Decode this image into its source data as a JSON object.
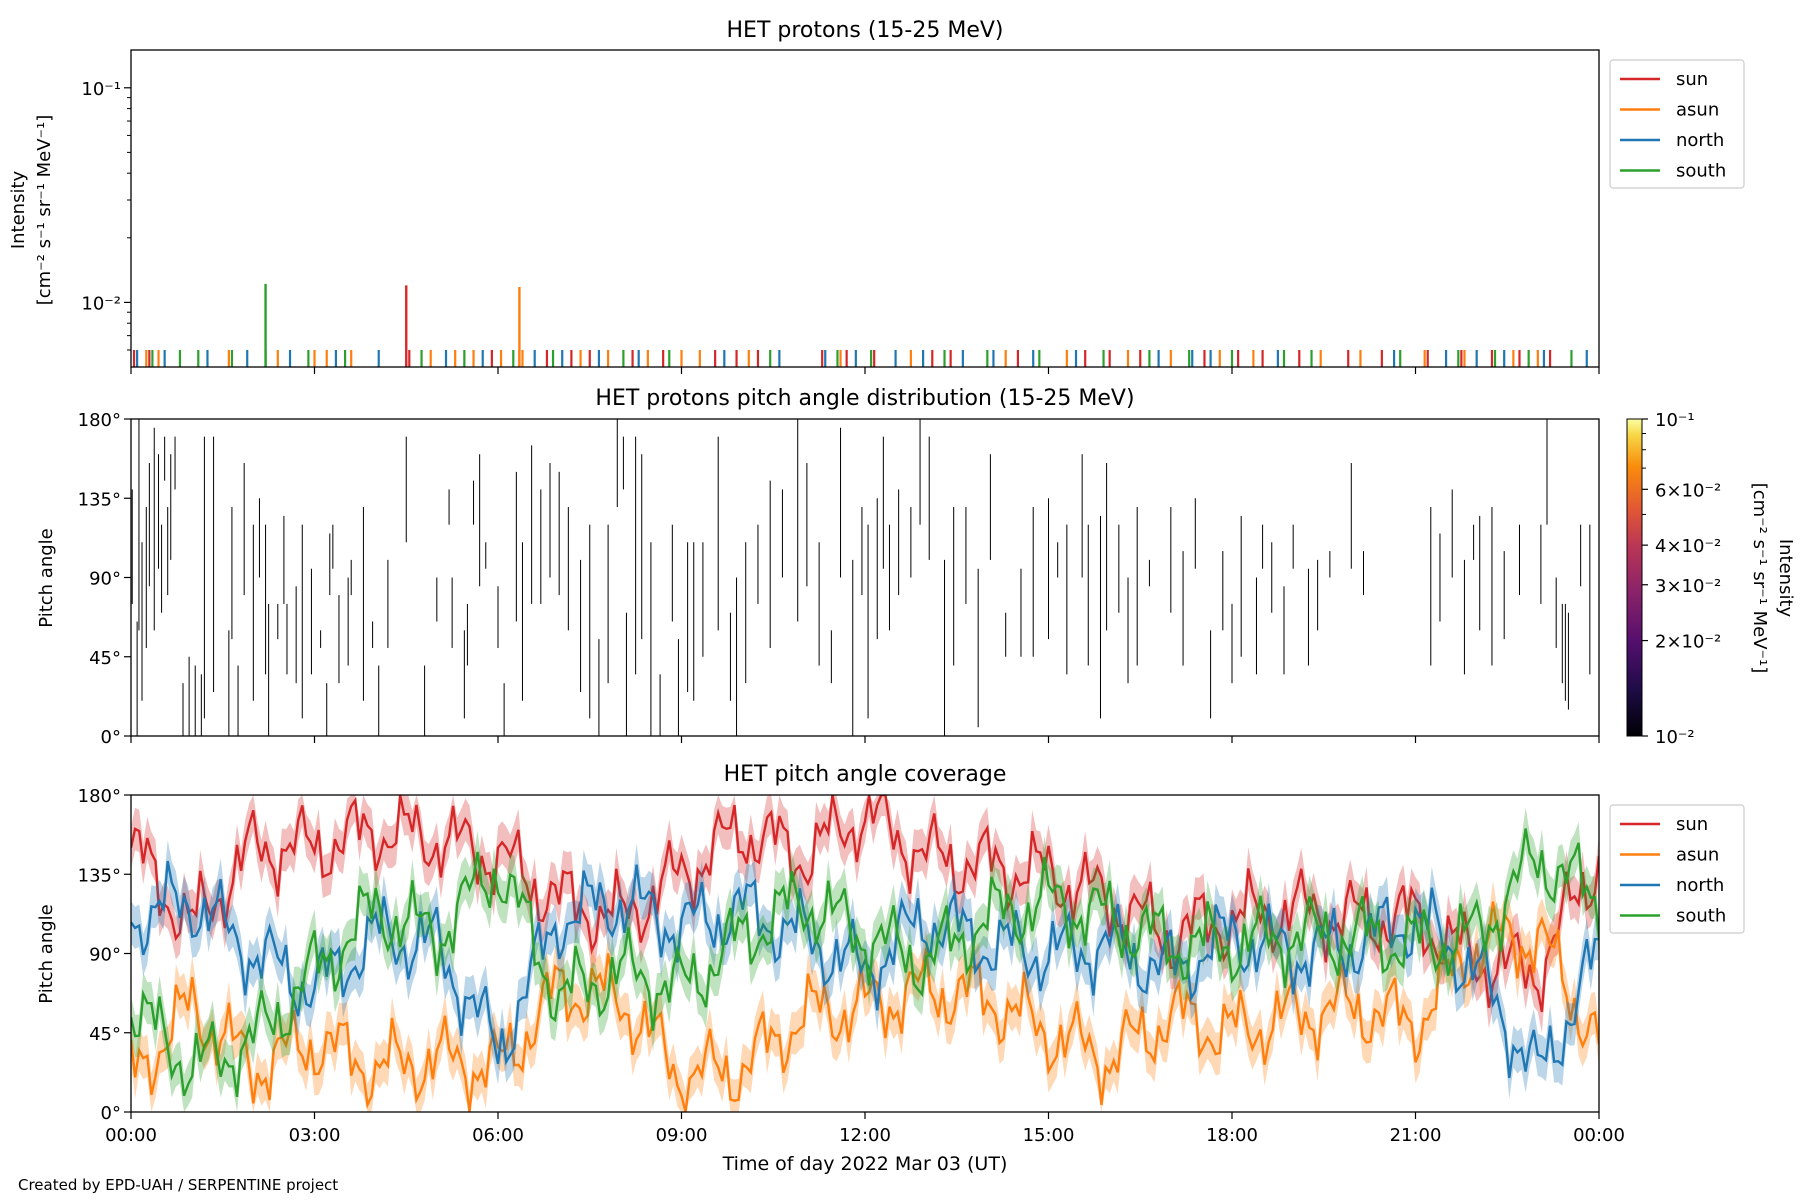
{
  "footer": "Created by EPD-UAH / SERPENTINE project",
  "colors": {
    "sun": "#d62728",
    "asun": "#ff7f0e",
    "north": "#1f77b4",
    "south": "#2ca02c"
  },
  "chart_data": [
    {
      "id": "intensity",
      "type": "line",
      "title": "HET protons (15-25 MeV)",
      "ylabel_lines": [
        "Intensity",
        "[cm⁻² s⁻¹ sr⁻¹ MeV⁻¹]"
      ],
      "yscale": "log",
      "ylim": [
        0.005,
        0.15
      ],
      "yticks": [
        {
          "value": 0.1,
          "label": "10⁻¹"
        },
        {
          "value": 0.01,
          "label": "10⁻²"
        }
      ],
      "xlim": [
        "00:00",
        "24:00"
      ],
      "legend": {
        "position": "upper right outside",
        "entries": [
          "sun",
          "asun",
          "north",
          "south"
        ]
      },
      "baseline": 0.006,
      "series": [
        {
          "name": "sun",
          "color": "#d62728",
          "spikes": [
            {
              "x": 4.5,
              "y": 0.012
            }
          ],
          "baseline_hours": [
            0.05,
            0.3,
            4.55,
            5.9,
            6.35,
            6.8,
            7.2,
            7.5,
            8.2,
            8.7,
            9.55,
            9.9,
            10.25,
            11.3,
            11.7,
            12.15,
            13.1,
            13.4,
            14.5,
            15.6,
            16.0,
            16.5,
            17.55,
            18.1,
            18.5,
            19.1,
            19.9,
            20.45,
            21.2,
            21.75,
            22.25,
            22.7,
            23.2
          ]
        },
        {
          "name": "asun",
          "color": "#ff7f0e",
          "spikes": [
            {
              "x": 6.35,
              "y": 0.0118
            }
          ],
          "baseline_hours": [
            0.25,
            0.45,
            1.6,
            2.4,
            3.0,
            3.2,
            3.6,
            4.9,
            5.3,
            5.6,
            6.05,
            6.4,
            7.35,
            7.8,
            8.45,
            9.0,
            9.3,
            10.1,
            11.6,
            12.75,
            14.3,
            15.3,
            16.3,
            17.0,
            17.8,
            18.35,
            19.45,
            20.1,
            21.15,
            21.8,
            22.6,
            23.0
          ]
        },
        {
          "name": "north",
          "color": "#1f77b4",
          "spikes": [],
          "baseline_hours": [
            0.1,
            0.55,
            1.25,
            1.9,
            2.6,
            3.35,
            4.05,
            5.15,
            5.75,
            6.6,
            7.05,
            7.65,
            8.3,
            9.7,
            10.6,
            11.35,
            11.85,
            12.5,
            12.95,
            13.6,
            14.1,
            14.75,
            15.45,
            16.8,
            17.35,
            17.65,
            18.75,
            20.65,
            21.5,
            22.0,
            22.45,
            23.1,
            23.8
          ]
        },
        {
          "name": "south",
          "color": "#2ca02c",
          "spikes": [
            {
              "x": 2.2,
              "y": 0.0122
            }
          ],
          "baseline_hours": [
            0.35,
            0.8,
            1.1,
            1.65,
            2.2,
            2.9,
            3.5,
            4.75,
            5.45,
            6.25,
            6.9,
            8.05,
            8.8,
            10.45,
            11.55,
            12.1,
            13.3,
            14.0,
            14.85,
            15.9,
            16.65,
            17.3,
            18.0,
            18.85,
            19.3,
            20.75,
            21.7,
            22.3,
            22.85,
            23.55
          ]
        }
      ]
    },
    {
      "id": "pad",
      "type": "heatmap",
      "title": "HET protons pitch angle distribution (15-25 MeV)",
      "ylabel": "Pitch angle",
      "ylim": [
        0,
        180
      ],
      "yticks": [
        {
          "value": 0,
          "label": "0°"
        },
        {
          "value": 45,
          "label": "45°"
        },
        {
          "value": 90,
          "label": "90°"
        },
        {
          "value": 135,
          "label": "135°"
        },
        {
          "value": 180,
          "label": "180°"
        }
      ],
      "xlim": [
        "00:00",
        "24:00"
      ],
      "colorbar": {
        "label_lines": [
          "Intensity",
          "[cm⁻² s⁻¹ sr⁻¹ MeV⁻¹]"
        ],
        "scale": "log",
        "range": [
          0.01,
          0.1
        ],
        "colormap": "inferno",
        "ticks": [
          {
            "value": 0.1,
            "label": "10⁻¹"
          },
          {
            "value": 0.06,
            "label": "6×10⁻²"
          },
          {
            "value": 0.04,
            "label": "4×10⁻²"
          },
          {
            "value": 0.03,
            "label": "3×10⁻²"
          },
          {
            "value": 0.02,
            "label": "2×10⁻²"
          },
          {
            "value": 0.01,
            "label": "10⁻²"
          }
        ]
      },
      "segments": [
        [
          0.02,
          75,
          140
        ],
        [
          0.1,
          0,
          65
        ],
        [
          0.13,
          60,
          180
        ],
        [
          0.18,
          20,
          110
        ],
        [
          0.25,
          50,
          130
        ],
        [
          0.3,
          85,
          155
        ],
        [
          0.38,
          60,
          175
        ],
        [
          0.45,
          95,
          160
        ],
        [
          0.5,
          70,
          120
        ],
        [
          0.55,
          145,
          170
        ],
        [
          0.6,
          80,
          130
        ],
        [
          0.65,
          100,
          160
        ],
        [
          0.72,
          140,
          170
        ],
        [
          0.85,
          0,
          30
        ],
        [
          0.95,
          0,
          45
        ],
        [
          1.05,
          0,
          40
        ],
        [
          1.15,
          0,
          35
        ],
        [
          1.2,
          10,
          170
        ],
        [
          1.35,
          25,
          170
        ],
        [
          1.6,
          0,
          60
        ],
        [
          1.65,
          55,
          130
        ],
        [
          1.75,
          0,
          40
        ],
        [
          1.85,
          80,
          155
        ],
        [
          2.0,
          20,
          120
        ],
        [
          2.1,
          90,
          135
        ],
        [
          2.2,
          35,
          120
        ],
        [
          2.25,
          0,
          75
        ],
        [
          2.4,
          55,
          75
        ],
        [
          2.5,
          75,
          125
        ],
        [
          2.55,
          35,
          75
        ],
        [
          2.7,
          30,
          85
        ],
        [
          2.8,
          10,
          120
        ],
        [
          2.95,
          35,
          95
        ],
        [
          3.1,
          50,
          60
        ],
        [
          3.2,
          0,
          30
        ],
        [
          3.25,
          80,
          115
        ],
        [
          3.3,
          95,
          120
        ],
        [
          3.4,
          30,
          80
        ],
        [
          3.55,
          40,
          90
        ],
        [
          3.6,
          80,
          100
        ],
        [
          3.8,
          20,
          130
        ],
        [
          3.95,
          50,
          65
        ],
        [
          4.05,
          0,
          40
        ],
        [
          4.2,
          50,
          100
        ],
        [
          4.5,
          110,
          170
        ],
        [
          4.8,
          0,
          40
        ],
        [
          5.0,
          65,
          90
        ],
        [
          5.2,
          120,
          140
        ],
        [
          5.25,
          50,
          90
        ],
        [
          5.45,
          10,
          60
        ],
        [
          5.5,
          40,
          75
        ],
        [
          5.6,
          120,
          145
        ],
        [
          5.7,
          85,
          160
        ],
        [
          5.8,
          95,
          110
        ],
        [
          6.0,
          50,
          85
        ],
        [
          6.1,
          0,
          30
        ],
        [
          6.3,
          65,
          150
        ],
        [
          6.4,
          20,
          110
        ],
        [
          6.55,
          75,
          165
        ],
        [
          6.7,
          75,
          140
        ],
        [
          6.85,
          90,
          155
        ],
        [
          7.0,
          80,
          150
        ],
        [
          7.15,
          60,
          130
        ],
        [
          7.35,
          25,
          100
        ],
        [
          7.5,
          10,
          120
        ],
        [
          7.65,
          0,
          55
        ],
        [
          7.8,
          30,
          120
        ],
        [
          7.95,
          130,
          180
        ],
        [
          8.05,
          140,
          170
        ],
        [
          8.1,
          0,
          70
        ],
        [
          8.25,
          35,
          170
        ],
        [
          8.35,
          55,
          160
        ],
        [
          8.5,
          0,
          110
        ],
        [
          8.65,
          0,
          35
        ],
        [
          8.85,
          65,
          120
        ],
        [
          8.95,
          0,
          55
        ],
        [
          9.1,
          25,
          110
        ],
        [
          9.2,
          20,
          110
        ],
        [
          9.35,
          45,
          110
        ],
        [
          9.6,
          60,
          170
        ],
        [
          9.8,
          20,
          70
        ],
        [
          9.9,
          0,
          90
        ],
        [
          10.05,
          30,
          110
        ],
        [
          10.25,
          75,
          120
        ],
        [
          10.45,
          50,
          145
        ],
        [
          10.65,
          90,
          140
        ],
        [
          10.9,
          65,
          180
        ],
        [
          11.05,
          85,
          155
        ],
        [
          11.25,
          40,
          110
        ],
        [
          11.45,
          30,
          60
        ],
        [
          11.6,
          90,
          175
        ],
        [
          11.8,
          0,
          100
        ],
        [
          11.95,
          80,
          130
        ],
        [
          12.05,
          10,
          120
        ],
        [
          12.2,
          55,
          135
        ],
        [
          12.3,
          95,
          170
        ],
        [
          12.4,
          60,
          120
        ],
        [
          12.55,
          80,
          140
        ],
        [
          12.75,
          90,
          130
        ],
        [
          12.9,
          120,
          180
        ],
        [
          13.05,
          100,
          170
        ],
        [
          13.3,
          0,
          100
        ],
        [
          13.45,
          40,
          130
        ],
        [
          13.65,
          75,
          130
        ],
        [
          13.85,
          5,
          95
        ],
        [
          14.05,
          100,
          160
        ],
        [
          14.3,
          45,
          70
        ],
        [
          14.55,
          45,
          95
        ],
        [
          14.75,
          45,
          130
        ],
        [
          15.0,
          55,
          135
        ],
        [
          15.15,
          90,
          110
        ],
        [
          15.3,
          35,
          120
        ],
        [
          15.55,
          90,
          160
        ],
        [
          15.65,
          40,
          120
        ],
        [
          15.85,
          10,
          125
        ],
        [
          15.95,
          60,
          155
        ],
        [
          16.15,
          70,
          120
        ],
        [
          16.3,
          30,
          90
        ],
        [
          16.45,
          40,
          130
        ],
        [
          16.65,
          85,
          100
        ],
        [
          17.0,
          70,
          130
        ],
        [
          17.2,
          40,
          105
        ],
        [
          17.4,
          95,
          135
        ],
        [
          17.65,
          10,
          60
        ],
        [
          17.85,
          60,
          105
        ],
        [
          18.0,
          30,
          75
        ],
        [
          18.15,
          45,
          125
        ],
        [
          18.4,
          35,
          90
        ],
        [
          18.5,
          95,
          120
        ],
        [
          18.65,
          70,
          110
        ],
        [
          18.85,
          35,
          85
        ],
        [
          19.0,
          95,
          120
        ],
        [
          19.25,
          40,
          95
        ],
        [
          19.4,
          60,
          100
        ],
        [
          19.6,
          90,
          105
        ],
        [
          19.95,
          95,
          155
        ],
        [
          20.15,
          80,
          105
        ],
        [
          21.25,
          40,
          130
        ],
        [
          21.4,
          65,
          115
        ],
        [
          21.6,
          90,
          140
        ],
        [
          21.8,
          35,
          100
        ],
        [
          21.95,
          100,
          120
        ],
        [
          22.05,
          60,
          125
        ],
        [
          22.25,
          40,
          130
        ],
        [
          22.45,
          55,
          105
        ],
        [
          22.7,
          80,
          120
        ],
        [
          23.05,
          75,
          120
        ],
        [
          23.15,
          120,
          180
        ],
        [
          23.3,
          50,
          90
        ],
        [
          23.4,
          30,
          75
        ],
        [
          23.45,
          20,
          75
        ],
        [
          23.5,
          15,
          70
        ],
        [
          23.7,
          85,
          120
        ],
        [
          23.85,
          35,
          120
        ]
      ]
    },
    {
      "id": "coverage",
      "type": "area",
      "title": "HET pitch angle coverage",
      "xlabel": "Time of day 2022 Mar 03 (UT)",
      "ylabel": "Pitch angle",
      "ylim": [
        0,
        180
      ],
      "yticks": [
        {
          "value": 0,
          "label": "0°"
        },
        {
          "value": 45,
          "label": "45°"
        },
        {
          "value": 90,
          "label": "90°"
        },
        {
          "value": 135,
          "label": "135°"
        },
        {
          "value": 180,
          "label": "180°"
        }
      ],
      "xlim": [
        "00:00",
        "24:00"
      ],
      "xticks": [
        {
          "value": 0,
          "label": "00:00"
        },
        {
          "value": 3,
          "label": "03:00"
        },
        {
          "value": 6,
          "label": "06:00"
        },
        {
          "value": 9,
          "label": "09:00"
        },
        {
          "value": 12,
          "label": "12:00"
        },
        {
          "value": 15,
          "label": "15:00"
        },
        {
          "value": 18,
          "label": "18:00"
        },
        {
          "value": 21,
          "label": "21:00"
        },
        {
          "value": 24,
          "label": "00:00"
        }
      ],
      "legend": {
        "position": "upper right outside",
        "entries": [
          "sun",
          "asun",
          "north",
          "south"
        ]
      },
      "band_halfwidth_deg": 12,
      "x_hours": [
        0,
        1,
        2,
        3,
        4,
        5,
        6,
        7,
        8,
        9,
        10,
        11,
        12,
        13,
        14,
        15,
        16,
        17,
        18,
        19,
        20,
        21,
        22,
        23,
        24
      ],
      "series": [
        {
          "name": "sun",
          "color": "#d62728",
          "values": [
            150,
            105,
            150,
            150,
            160,
            155,
            145,
            120,
            110,
            135,
            160,
            145,
            170,
            145,
            140,
            135,
            120,
            100,
            110,
            115,
            110,
            110,
            85,
            80,
            145
          ]
        },
        {
          "name": "asun",
          "color": "#ff7f0e",
          "values": [
            20,
            60,
            25,
            40,
            25,
            30,
            25,
            70,
            65,
            20,
            25,
            55,
            60,
            70,
            65,
            45,
            30,
            55,
            45,
            55,
            60,
            50,
            95,
            100,
            40
          ]
        },
        {
          "name": "north",
          "color": "#1f77b4",
          "values": [
            110,
            120,
            90,
            70,
            100,
            95,
            35,
            110,
            120,
            105,
            115,
            100,
            80,
            110,
            95,
            90,
            95,
            80,
            100,
            90,
            95,
            110,
            80,
            20,
            90
          ]
        },
        {
          "name": "south",
          "color": "#2ca02c",
          "values": [
            60,
            25,
            40,
            80,
            115,
            100,
            140,
            65,
            80,
            70,
            100,
            120,
            100,
            85,
            110,
            120,
            110,
            95,
            95,
            100,
            100,
            95,
            100,
            145,
            120
          ]
        }
      ]
    }
  ]
}
